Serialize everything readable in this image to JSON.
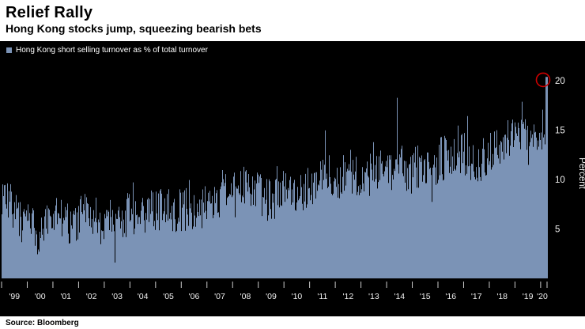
{
  "header": {
    "title": "Relief Rally",
    "subtitle": "Hong Kong stocks jump, squeezing bearish bets"
  },
  "legend": {
    "label": "Hong Kong short selling turnover as % of total turnover",
    "swatch_color": "#7b93b6"
  },
  "footer": {
    "source": "Source: Bloomberg"
  },
  "chart_data": {
    "type": "bar",
    "title": "Relief Rally",
    "subtitle": "Hong Kong stocks jump, squeezing bearish bets",
    "series_name": "Hong Kong short selling turnover as % of total turnover",
    "x_start_year": 1999,
    "x_end_year": 2020.25,
    "x_tick_labels": [
      "'99",
      "'00",
      "'01",
      "'02",
      "'03",
      "'04",
      "'05",
      "'06",
      "'07",
      "'08",
      "'09",
      "'10",
      "'11",
      "'12",
      "'13",
      "'14",
      "'15",
      "'16",
      "'17",
      "'18",
      "'19",
      "'20"
    ],
    "ylabel": "Percent",
    "ylim": [
      0,
      21.3
    ],
    "yticks": [
      5,
      10,
      15,
      20
    ],
    "grid": false,
    "legend_position": "top-left",
    "quarterly_mean_values": [
      8.5,
      7.5,
      6.5,
      5.5,
      5.0,
      4.5,
      4.5,
      5.0,
      5.5,
      6.0,
      5.5,
      5.0,
      6.0,
      6.5,
      6.0,
      5.5,
      5.5,
      6.0,
      6.5,
      6.0,
      6.5,
      6.0,
      6.0,
      6.5,
      6.5,
      7.0,
      6.5,
      6.5,
      7.0,
      6.5,
      7.0,
      7.0,
      7.5,
      8.0,
      8.5,
      8.0,
      8.5,
      9.0,
      9.5,
      8.5,
      8.0,
      7.5,
      8.0,
      8.5,
      8.5,
      9.0,
      8.5,
      9.0,
      9.5,
      9.5,
      10.5,
      10.0,
      10.0,
      10.5,
      10.0,
      10.5,
      10.5,
      10.0,
      10.5,
      11.0,
      10.5,
      11.0,
      11.0,
      10.5,
      11.0,
      11.5,
      10.5,
      11.5,
      12.0,
      12.5,
      12.0,
      12.5,
      12.0,
      11.5,
      12.0,
      12.5,
      13.0,
      13.5,
      13.5,
      14.0,
      14.0,
      13.5,
      14.0,
      14.5,
      15.5
    ],
    "noise_amplitude": 2.3,
    "noise_seed": 7,
    "final_spike_value": 20.4,
    "annotation": {
      "type": "circle",
      "target": "final-spike",
      "color": "#cc0000"
    },
    "colors": {
      "background": "#000000",
      "fill": "#7b93b6",
      "axis_text": "#f0f0f0",
      "tick": "#cccccc"
    }
  }
}
